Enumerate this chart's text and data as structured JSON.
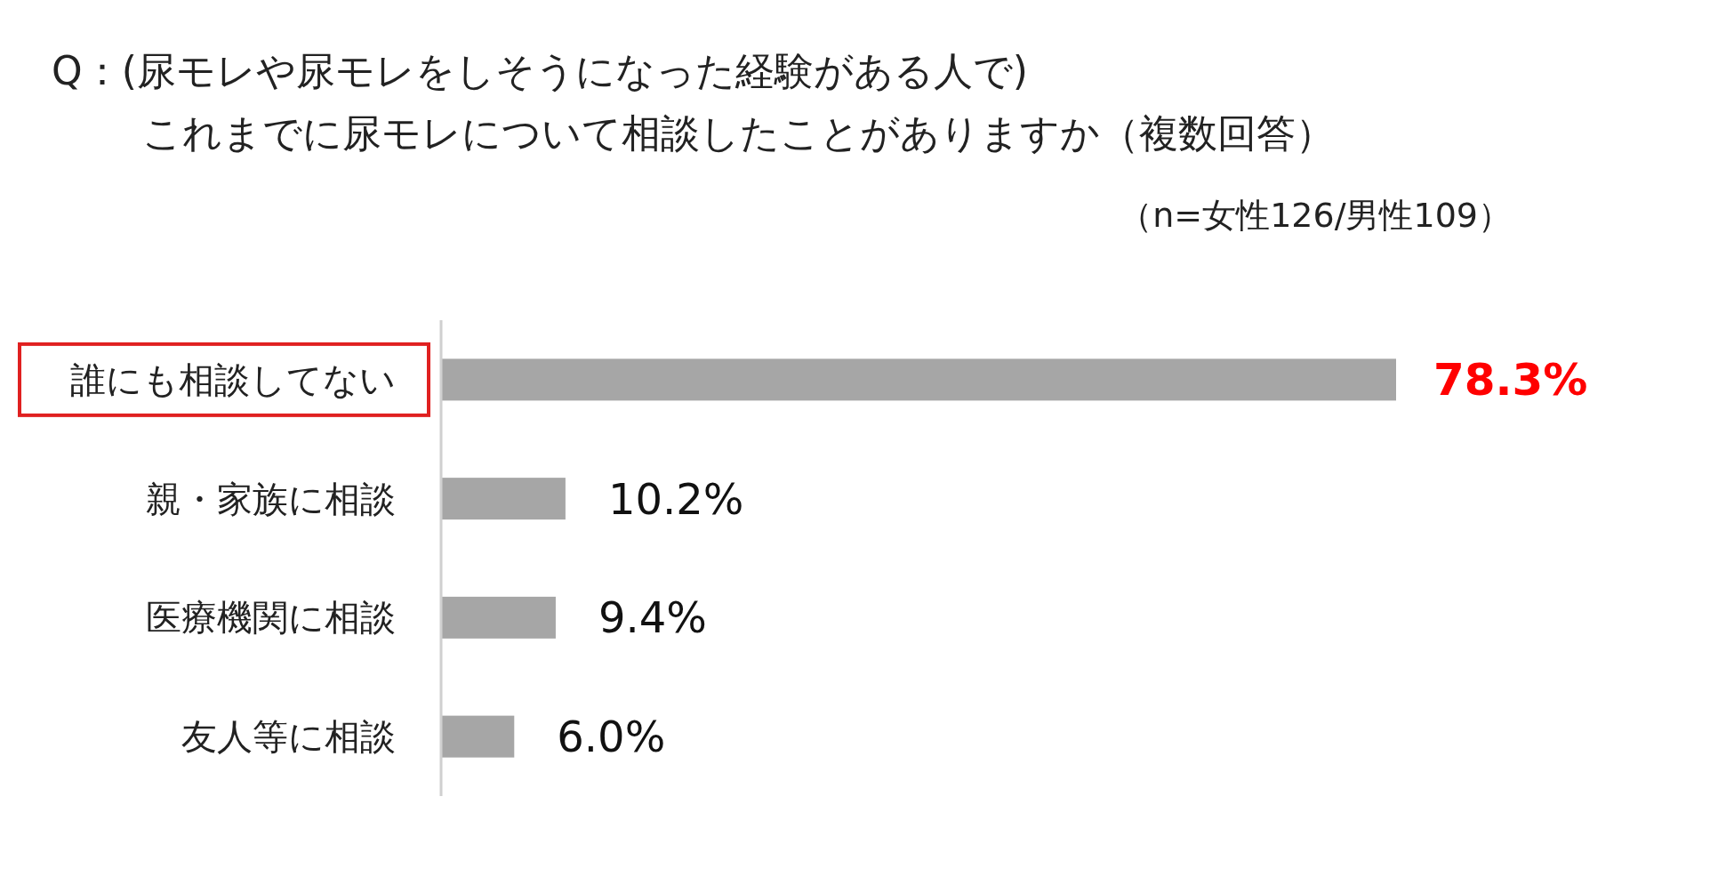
{
  "chart_data": {
    "type": "bar",
    "orientation": "horizontal",
    "title": "Q：(尿モレや尿モレをしそうになった経験がある人で)\nこれまでに尿モレについて相談したことがありますか（複数回答）",
    "subtitle": "（n=女性126/男性109）",
    "categories": [
      "誰にも相談してない",
      "親・家族に相談",
      "医療機関に相談",
      "友人等に相談"
    ],
    "values": [
      78.3,
      10.2,
      9.4,
      6.0
    ],
    "value_labels": [
      "78.3%",
      "10.2%",
      "9.4%",
      "6.0%"
    ],
    "color": "#a6a6a6"
  }
}
